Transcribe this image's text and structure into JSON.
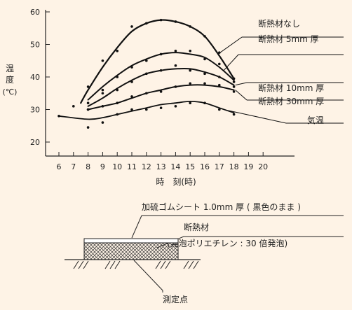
{
  "chart_data": {
    "type": "line",
    "xlabel": "時　刻(時)",
    "ylabel_chars": [
      "温",
      "度"
    ],
    "ylabel_unit": "(℃)",
    "x_ticks": [
      6,
      7,
      8,
      9,
      10,
      11,
      12,
      13,
      14,
      15,
      16,
      17,
      18,
      19,
      20
    ],
    "y_ticks": [
      20,
      30,
      40,
      50,
      60
    ],
    "xlim": [
      5.5,
      20.5
    ],
    "ylim": [
      15,
      62
    ],
    "series": [
      {
        "name": "断熱材なし",
        "curve": [
          [
            7.5,
            32
          ],
          [
            8,
            36
          ],
          [
            9,
            43
          ],
          [
            10,
            49
          ],
          [
            11,
            54
          ],
          [
            12,
            56.5
          ],
          [
            13,
            57.5
          ],
          [
            14,
            57
          ],
          [
            15,
            55.5
          ],
          [
            16,
            52.5
          ],
          [
            17,
            46.5
          ],
          [
            18,
            39.5
          ]
        ],
        "points": [
          [
            7,
            31
          ],
          [
            8,
            37
          ],
          [
            9,
            45
          ],
          [
            10,
            48
          ],
          [
            11,
            55.5
          ],
          [
            12,
            56.5
          ],
          [
            13,
            57.5
          ],
          [
            14,
            57
          ],
          [
            15,
            55.5
          ],
          [
            16,
            52.5
          ],
          [
            17,
            47.5
          ],
          [
            18,
            39.5
          ]
        ]
      },
      {
        "name": "断熱材 5mm 厚",
        "curve": [
          [
            8,
            33
          ],
          [
            9,
            37
          ],
          [
            10,
            40.5
          ],
          [
            11,
            43.5
          ],
          [
            12,
            45.5
          ],
          [
            13,
            47
          ],
          [
            14,
            47.5
          ],
          [
            15,
            47
          ],
          [
            16,
            46
          ],
          [
            17,
            43
          ],
          [
            18,
            39
          ]
        ],
        "points": [
          [
            8,
            32
          ],
          [
            9,
            36
          ],
          [
            10,
            40
          ],
          [
            11,
            43
          ],
          [
            12,
            45
          ],
          [
            13,
            47
          ],
          [
            14,
            48
          ],
          [
            15,
            48
          ],
          [
            16,
            45.5
          ],
          [
            17,
            44
          ],
          [
            18,
            38.5
          ]
        ]
      },
      {
        "name": "断熱材 10mm 厚",
        "curve": [
          [
            8,
            31
          ],
          [
            9,
            33.5
          ],
          [
            10,
            36.5
          ],
          [
            11,
            39
          ],
          [
            12,
            41
          ],
          [
            13,
            42
          ],
          [
            14,
            42.5
          ],
          [
            15,
            42.5
          ],
          [
            16,
            41.5
          ],
          [
            17,
            40
          ],
          [
            18,
            37.5
          ]
        ],
        "points": [
          [
            8,
            30
          ],
          [
            9,
            35
          ],
          [
            10,
            36
          ],
          [
            11,
            38.5
          ],
          [
            12,
            41
          ],
          [
            13,
            42
          ],
          [
            14,
            43.5
          ],
          [
            15,
            42
          ],
          [
            16,
            41
          ],
          [
            17,
            40
          ],
          [
            18,
            37
          ]
        ]
      },
      {
        "name": "断熱材 30mm 厚",
        "curve": [
          [
            8,
            30
          ],
          [
            9,
            31
          ],
          [
            10,
            32
          ],
          [
            11,
            33.5
          ],
          [
            12,
            35
          ],
          [
            13,
            36
          ],
          [
            14,
            37
          ],
          [
            15,
            37.5
          ],
          [
            16,
            37.5
          ],
          [
            17,
            37
          ],
          [
            18,
            36
          ]
        ],
        "points": [
          [
            8,
            30
          ],
          [
            9,
            31
          ],
          [
            10,
            32
          ],
          [
            11,
            34
          ],
          [
            12,
            35
          ],
          [
            13,
            35.5
          ],
          [
            14,
            37
          ],
          [
            15,
            38
          ],
          [
            16,
            38
          ],
          [
            17,
            37.5
          ],
          [
            18,
            35.5
          ]
        ]
      },
      {
        "name": "気温",
        "curve": [
          [
            6,
            28
          ],
          [
            8,
            27
          ],
          [
            9,
            27.5
          ],
          [
            10,
            28.5
          ],
          [
            11,
            29.5
          ],
          [
            12,
            30.5
          ],
          [
            13,
            31.5
          ],
          [
            14,
            32
          ],
          [
            15,
            32.5
          ],
          [
            16,
            32
          ],
          [
            17,
            30.5
          ],
          [
            18,
            29
          ]
        ],
        "points": [
          [
            6,
            28
          ],
          [
            8,
            24.5
          ],
          [
            9,
            26
          ],
          [
            10,
            28.5
          ],
          [
            11,
            30
          ],
          [
            12,
            30
          ],
          [
            13,
            30.5
          ],
          [
            14,
            31
          ],
          [
            15,
            32
          ],
          [
            16,
            32
          ],
          [
            17,
            30
          ],
          [
            18,
            28.5
          ]
        ]
      }
    ]
  },
  "diagram": {
    "label_sheet": "加硫ゴムシート 1.0mm 厚 ( 黒色のまま )",
    "label_insulation": "断熱材",
    "label_insulation_detail": "(発泡ポリエチレン : 30 倍発泡)",
    "label_measure": "測定点"
  }
}
